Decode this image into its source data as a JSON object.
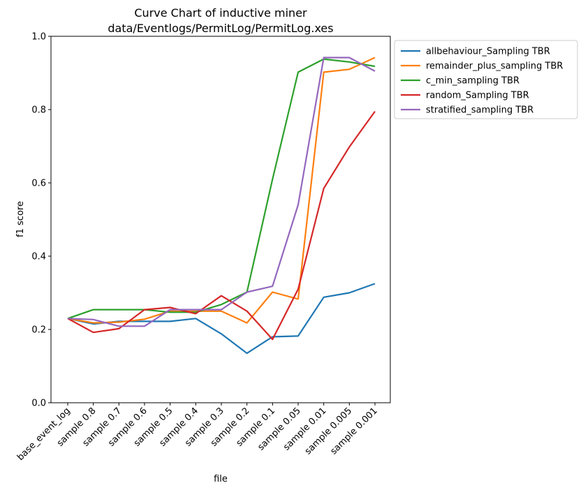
{
  "chart_data": {
    "type": "line",
    "title": "Curve Chart of inductive miner",
    "subtitle": "data/Eventlogs/PermitLog/PermitLog.xes",
    "xlabel": "file",
    "ylabel": "f1 score",
    "ylim": [
      0.0,
      1.0
    ],
    "yticks": [
      "0.0",
      "0.2",
      "0.4",
      "0.6",
      "0.8",
      "1.0"
    ],
    "grid": false,
    "legend_position": "outside-top-right",
    "categories": [
      "base_event_log",
      "sample 0.8",
      "sample 0.7",
      "sample 0.6",
      "sample 0.5",
      "sample 0.4",
      "sample 0.3",
      "sample 0.2",
      "sample 0.1",
      "sample 0.05",
      "sample 0.01",
      "sample 0.005",
      "sample 0.001"
    ],
    "series": [
      {
        "name": "allbehaviour_Sampling TBR",
        "color": "#1f77b4",
        "values": [
          0.23,
          0.215,
          0.222,
          0.222,
          0.222,
          0.23,
          0.188,
          0.135,
          0.18,
          0.182,
          0.288,
          0.3,
          0.325
        ]
      },
      {
        "name": "remainder_plus_sampling TBR",
        "color": "#ff7f0e",
        "values": [
          0.23,
          0.218,
          0.22,
          0.228,
          0.25,
          0.25,
          0.25,
          0.218,
          0.302,
          0.283,
          0.902,
          0.91,
          0.942
        ]
      },
      {
        "name": "c_min_sampling TBR",
        "color": "#2ca02c",
        "values": [
          0.23,
          0.254,
          0.254,
          0.254,
          0.247,
          0.247,
          0.268,
          0.302,
          0.61,
          0.902,
          0.938,
          0.93,
          0.918
        ]
      },
      {
        "name": "random_Sampling TBR",
        "color": "#d62728",
        "values": [
          0.23,
          0.192,
          0.202,
          0.254,
          0.26,
          0.243,
          0.292,
          0.25,
          0.173,
          0.31,
          0.585,
          0.698,
          0.795
        ]
      },
      {
        "name": "stratified_sampling TBR",
        "color": "#9467bd",
        "values": [
          0.23,
          0.227,
          0.209,
          0.209,
          0.254,
          0.254,
          0.254,
          0.302,
          0.318,
          0.54,
          0.942,
          0.942,
          0.905
        ]
      }
    ]
  }
}
